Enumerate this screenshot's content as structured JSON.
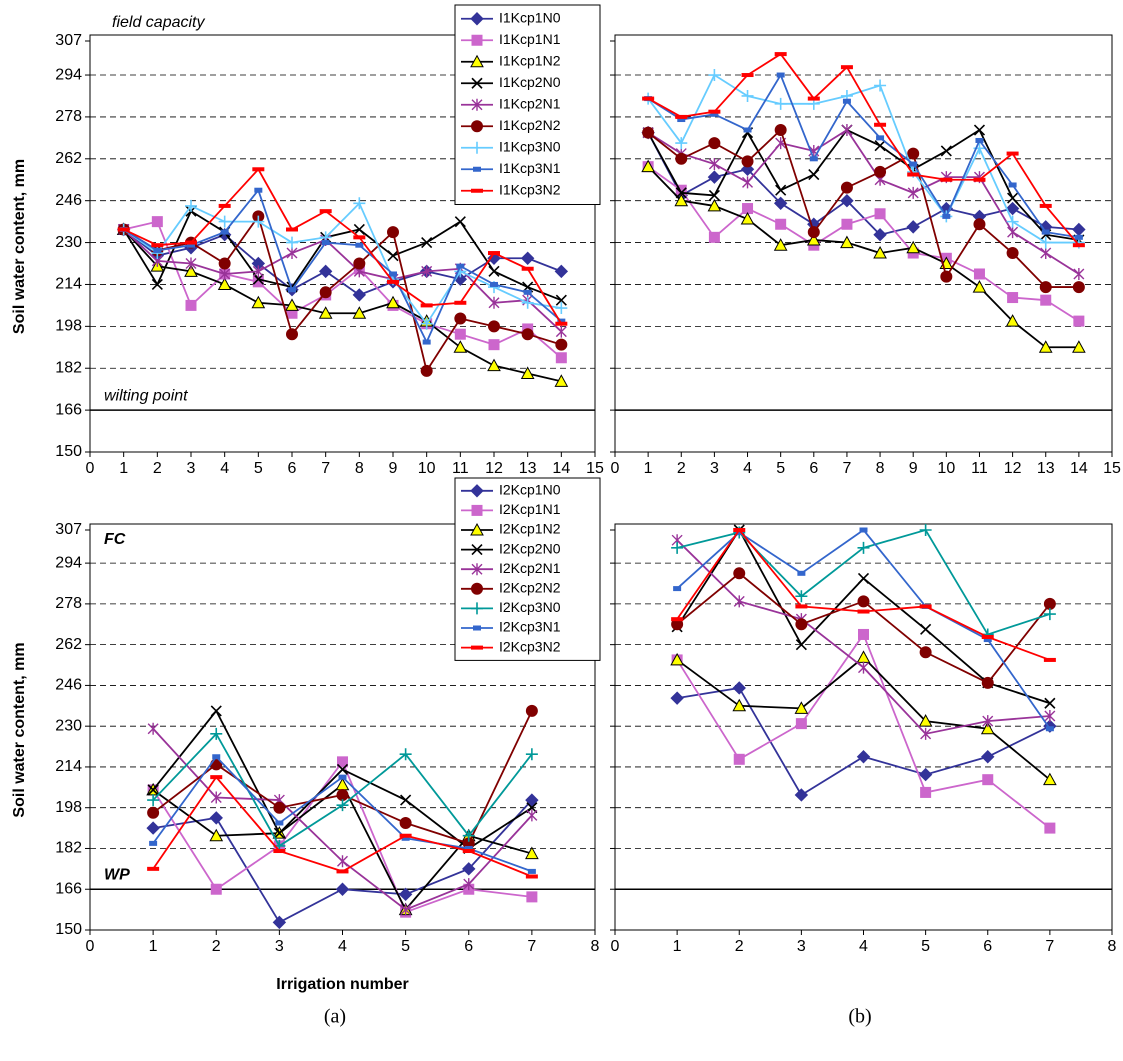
{
  "panel_labels": [
    "(a)",
    "(b)"
  ],
  "chart_data": [
    {
      "type": "line",
      "ylabel": "Soil water content, mm",
      "annotations": [
        "field capacity",
        "wilting point"
      ],
      "annotation_style": "italic",
      "x": [
        1,
        2,
        3,
        4,
        5,
        6,
        7,
        8,
        9,
        10,
        11,
        12,
        13,
        14
      ],
      "xlim": [
        0,
        15
      ],
      "xticks": [
        0,
        1,
        2,
        3,
        4,
        5,
        6,
        7,
        8,
        9,
        10,
        11,
        12,
        13,
        14,
        15
      ],
      "ylim": [
        150,
        307
      ],
      "yticks": [
        150,
        166,
        182,
        198,
        214,
        230,
        246,
        262,
        278,
        294,
        307
      ],
      "ytick_labels": true,
      "grid": true,
      "refline": 166,
      "series": [
        {
          "name": "I1Kcp1N0",
          "color": "#333399",
          "marker": "diamond",
          "values": [
            235,
            225,
            228,
            233,
            222,
            212,
            219,
            210,
            215,
            219,
            216,
            224,
            224,
            219
          ]
        },
        {
          "name": "I1Kcp1N1",
          "color": "#cc66cc",
          "marker": "square",
          "values": [
            235,
            238,
            206,
            218,
            215,
            203,
            210,
            220,
            206,
            199,
            195,
            191,
            197,
            186
          ]
        },
        {
          "name": "I1Kcp1N2",
          "color": "#ffff00",
          "line_color": "#000000",
          "marker": "triangle",
          "values": [
            235,
            221,
            219,
            214,
            207,
            206,
            203,
            203,
            207,
            200,
            190,
            183,
            180,
            177
          ]
        },
        {
          "name": "I1Kcp2N0",
          "color": "#000000",
          "marker": "x",
          "values": [
            235,
            214,
            242,
            234,
            216,
            213,
            232,
            235,
            225,
            230,
            238,
            219,
            213,
            208
          ]
        },
        {
          "name": "I1Kcp2N1",
          "color": "#993399",
          "marker": "star",
          "values": [
            235,
            223,
            222,
            218,
            219,
            226,
            231,
            219,
            216,
            219,
            220,
            207,
            208,
            196
          ]
        },
        {
          "name": "I1Kcp2N2",
          "color": "#800000",
          "marker": "circle",
          "values": [
            235,
            227,
            230,
            222,
            240,
            195,
            211,
            222,
            234,
            181,
            201,
            198,
            195,
            191
          ]
        },
        {
          "name": "I1Kcp3N0",
          "color": "#66ccff",
          "marker": "plus",
          "values": [
            235,
            226,
            244,
            238,
            238,
            230,
            232,
            245,
            216,
            199,
            219,
            213,
            207,
            205
          ]
        },
        {
          "name": "I1Kcp3N1",
          "color": "#3366cc",
          "marker": "bar",
          "values": [
            235,
            227,
            229,
            234,
            250,
            212,
            230,
            229,
            218,
            192,
            221,
            214,
            211,
            200
          ]
        },
        {
          "name": "I1Kcp3N2",
          "color": "#ff0000",
          "marker": "dash",
          "values": [
            235,
            229,
            230,
            244,
            258,
            235,
            242,
            232,
            215,
            206,
            207,
            226,
            220,
            199
          ]
        }
      ]
    },
    {
      "type": "line",
      "x": [
        1,
        2,
        3,
        4,
        5,
        6,
        7,
        8,
        9,
        10,
        11,
        12,
        13,
        14
      ],
      "xlim": [
        0,
        15
      ],
      "xticks": [
        0,
        1,
        2,
        3,
        4,
        5,
        6,
        7,
        8,
        9,
        10,
        11,
        12,
        13,
        14,
        15
      ],
      "ylim": [
        150,
        307
      ],
      "yticks": [
        150,
        166,
        182,
        198,
        214,
        230,
        246,
        262,
        278,
        294,
        307
      ],
      "ytick_labels": false,
      "grid": true,
      "refline": 166,
      "series": [
        {
          "color": "#333399",
          "marker": "diamond",
          "values": [
            272,
            248,
            255,
            258,
            245,
            237,
            246,
            233,
            236,
            243,
            240,
            243,
            236,
            235
          ]
        },
        {
          "color": "#cc66cc",
          "marker": "square",
          "values": [
            259,
            250,
            232,
            243,
            237,
            229,
            237,
            241,
            226,
            224,
            218,
            209,
            208,
            200
          ]
        },
        {
          "color": "#ffff00",
          "line_color": "#000000",
          "marker": "triangle",
          "values": [
            259,
            246,
            244,
            239,
            229,
            231,
            230,
            226,
            228,
            222,
            213,
            200,
            190,
            190
          ]
        },
        {
          "color": "#000000",
          "marker": "x",
          "values": [
            272,
            249,
            248,
            272,
            250,
            256,
            273,
            267,
            258,
            265,
            273,
            247,
            233,
            231
          ]
        },
        {
          "color": "#993399",
          "marker": "star",
          "values": [
            272,
            264,
            260,
            253,
            268,
            265,
            273,
            254,
            249,
            255,
            255,
            234,
            226,
            218
          ]
        },
        {
          "color": "#800000",
          "marker": "circle",
          "values": [
            272,
            262,
            268,
            261,
            273,
            234,
            251,
            257,
            264,
            217,
            237,
            226,
            213,
            213
          ]
        },
        {
          "color": "#66ccff",
          "marker": "plus",
          "values": [
            285,
            268,
            294,
            286,
            283,
            283,
            286,
            290,
            257,
            240,
            266,
            238,
            230,
            230
          ]
        },
        {
          "color": "#3366cc",
          "marker": "bar",
          "values": [
            285,
            277,
            279,
            273,
            294,
            262,
            284,
            270,
            260,
            240,
            269,
            252,
            234,
            232
          ]
        },
        {
          "color": "#ff0000",
          "marker": "dash",
          "values": [
            285,
            278,
            280,
            294,
            302,
            285,
            297,
            275,
            256,
            254,
            254,
            264,
            244,
            229
          ]
        }
      ]
    },
    {
      "type": "line",
      "ylabel": "Soil water content, mm",
      "xlabel": "Irrigation number",
      "annotations": [
        "FC",
        "WP"
      ],
      "annotation_style": "bold-italic",
      "x": [
        1,
        2,
        3,
        4,
        5,
        6,
        7
      ],
      "xlim": [
        0,
        8
      ],
      "xticks": [
        0,
        1,
        2,
        3,
        4,
        5,
        6,
        7,
        8
      ],
      "ylim": [
        150,
        307
      ],
      "yticks": [
        150,
        166,
        182,
        198,
        214,
        230,
        246,
        262,
        278,
        294,
        307
      ],
      "ytick_labels": true,
      "grid": true,
      "refline": 166,
      "series": [
        {
          "name": "I2Kcp1N0",
          "color": "#333399",
          "marker": "diamond",
          "values": [
            190,
            194,
            153,
            166,
            164,
            174,
            201
          ]
        },
        {
          "name": "I2Kcp1N1",
          "color": "#cc66cc",
          "marker": "square",
          "values": [
            205,
            166,
            183,
            216,
            157,
            166,
            163
          ]
        },
        {
          "name": "I2Kcp1N2",
          "color": "#ffff00",
          "line_color": "#000000",
          "marker": "triangle",
          "values": [
            205,
            187,
            188,
            207,
            158,
            187,
            180
          ]
        },
        {
          "name": "I2Kcp2N0",
          "color": "#000000",
          "marker": "x",
          "values": [
            205,
            236,
            188,
            213,
            201,
            182,
            198
          ]
        },
        {
          "name": "I2Kcp2N1",
          "color": "#993399",
          "marker": "star",
          "values": [
            229,
            202,
            201,
            177,
            158,
            168,
            195
          ]
        },
        {
          "name": "I2Kcp2N2",
          "color": "#800000",
          "marker": "circle",
          "values": [
            196,
            215,
            198,
            203,
            192,
            184,
            236
          ]
        },
        {
          "name": "I2Kcp3N0",
          "color": "#009999",
          "marker": "plus",
          "values": [
            201,
            227,
            183,
            199,
            219,
            187,
            219
          ]
        },
        {
          "name": "I2Kcp3N1",
          "color": "#3366cc",
          "marker": "bar",
          "values": [
            184,
            218,
            192,
            210,
            186,
            182,
            173
          ]
        },
        {
          "name": "I2Kcp3N2",
          "color": "#ff0000",
          "marker": "dash",
          "values": [
            174,
            210,
            181,
            173,
            187,
            181,
            171
          ]
        }
      ]
    },
    {
      "type": "line",
      "x": [
        1,
        2,
        3,
        4,
        5,
        6,
        7
      ],
      "xlim": [
        0,
        8
      ],
      "xticks": [
        0,
        1,
        2,
        3,
        4,
        5,
        6,
        7,
        8
      ],
      "ylim": [
        150,
        307
      ],
      "yticks": [
        150,
        166,
        182,
        198,
        214,
        230,
        246,
        262,
        278,
        294,
        307
      ],
      "ytick_labels": false,
      "grid": true,
      "refline": 166,
      "series": [
        {
          "color": "#333399",
          "marker": "diamond",
          "values": [
            241,
            245,
            203,
            218,
            211,
            218,
            230
          ]
        },
        {
          "color": "#cc66cc",
          "marker": "square",
          "values": [
            256,
            217,
            231,
            266,
            204,
            209,
            190
          ]
        },
        {
          "color": "#ffff00",
          "line_color": "#000000",
          "marker": "triangle",
          "values": [
            256,
            238,
            237,
            257,
            232,
            229,
            209
          ]
        },
        {
          "color": "#000000",
          "marker": "x",
          "values": [
            269,
            307,
            262,
            288,
            268,
            247,
            239
          ]
        },
        {
          "color": "#993399",
          "marker": "star",
          "values": [
            303,
            279,
            272,
            253,
            227,
            232,
            234
          ]
        },
        {
          "color": "#800000",
          "marker": "circle",
          "values": [
            270,
            290,
            270,
            279,
            259,
            247,
            278
          ]
        },
        {
          "color": "#009999",
          "marker": "plus",
          "values": [
            300,
            306,
            281,
            300,
            307,
            266,
            274
          ]
        },
        {
          "color": "#3366cc",
          "marker": "bar",
          "values": [
            284,
            306,
            290,
            307,
            277,
            264,
            229
          ]
        },
        {
          "color": "#ff0000",
          "marker": "dash",
          "values": [
            272,
            307,
            277,
            275,
            277,
            265,
            256
          ]
        }
      ]
    }
  ]
}
